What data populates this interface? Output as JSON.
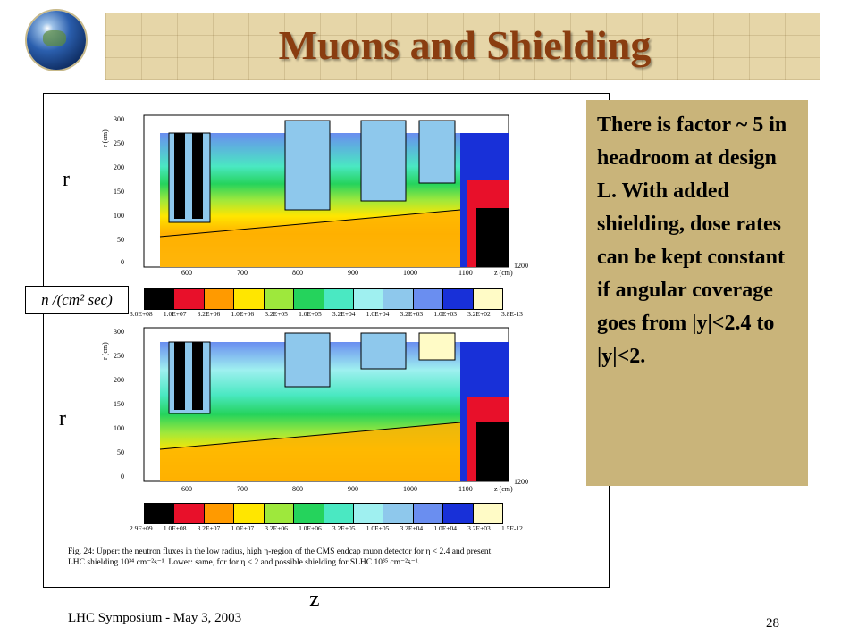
{
  "slide": {
    "title": "Muons and Shielding",
    "note": "There is factor ~ 5 in headroom at design L. With added shielding, dose rates can be kept constant if angular coverage goes from |y|<2.4 to |y|<2.",
    "footer": "LHC Symposium - May 3, 2003",
    "page_number": "28"
  },
  "labels": {
    "r_upper": "r",
    "r_lower": "r",
    "z": "z",
    "flux_unit": "n /(cm² sec)"
  },
  "figure": {
    "r_axis_title": "r (cm)",
    "z_axis_title": "z (cm)",
    "y_ticks": [
      "300",
      "250",
      "200",
      "150",
      "100",
      "50",
      "0"
    ],
    "x_ticks": [
      "600",
      "700",
      "800",
      "900",
      "1000",
      "1100",
      "1200"
    ],
    "upper_scale": [
      "3.0E+08",
      "1.0E+07",
      "3.2E+06",
      "1.0E+06",
      "3.2E+05",
      "1.0E+05",
      "3.2E+04",
      "1.0E+04",
      "3.2E+03",
      "1.0E+03",
      "3.2E+02",
      "3.8E-13"
    ],
    "lower_scale": [
      "2.9E+09",
      "1.0E+08",
      "3.2E+07",
      "1.0E+07",
      "3.2E+06",
      "1.0E+06",
      "3.2E+05",
      "1.0E+05",
      "3.2E+04",
      "1.0E+04",
      "3.2E+03",
      "1.5E-12"
    ],
    "scale_colors": [
      "#000000",
      "#e8102a",
      "#ff9a00",
      "#ffe600",
      "#9ee83c",
      "#25d35c",
      "#4ae8c2",
      "#9ff0f0",
      "#8ec8ec",
      "#6a8ef0",
      "#1830d8",
      "#fffbc6"
    ],
    "caption_line1": "Fig. 24: Upper: the neutron fluxes in the low radius, high η-region of the CMS endcap muon detector for η < 2.4 and present",
    "caption_line2": "LHC shielding 10³⁴ cm⁻²s⁻¹. Lower: same, for for η < 2 and possible shielding for SLHC 10³⁵ cm⁻²s⁻¹."
  }
}
